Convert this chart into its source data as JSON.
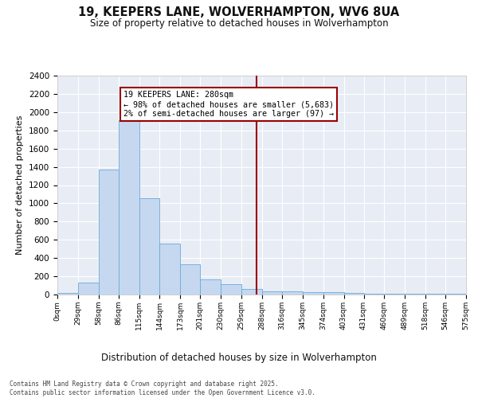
{
  "title_line1": "19, KEEPERS LANE, WOLVERHAMPTON, WV6 8UA",
  "title_line2": "Size of property relative to detached houses in Wolverhampton",
  "xlabel": "Distribution of detached houses by size in Wolverhampton",
  "ylabel": "Number of detached properties",
  "footer": "Contains HM Land Registry data © Crown copyright and database right 2025.\nContains public sector information licensed under the Open Government Licence v3.0.",
  "bar_color": "#c5d8f0",
  "bar_edge_color": "#6baad8",
  "background_color": "#e8edf5",
  "grid_color": "#ffffff",
  "annotation_text": "19 KEEPERS LANE: 280sqm\n← 98% of detached houses are smaller (5,683)\n2% of semi-detached houses are larger (97) →",
  "vline_x": 280,
  "vline_color": "#990000",
  "annotation_box_edge_color": "#990000",
  "bins": [
    0,
    29,
    58,
    86,
    115,
    144,
    173,
    201,
    230,
    259,
    288,
    316,
    345,
    374,
    403,
    431,
    460,
    489,
    518,
    546,
    575
  ],
  "bin_labels": [
    "0sqm",
    "29sqm",
    "58sqm",
    "86sqm",
    "115sqm",
    "144sqm",
    "173sqm",
    "201sqm",
    "230sqm",
    "259sqm",
    "288sqm",
    "316sqm",
    "345sqm",
    "374sqm",
    "403sqm",
    "431sqm",
    "460sqm",
    "489sqm",
    "518sqm",
    "546sqm",
    "575sqm"
  ],
  "counts": [
    15,
    130,
    1370,
    1910,
    1060,
    560,
    335,
    165,
    110,
    65,
    35,
    35,
    25,
    25,
    15,
    5,
    5,
    5,
    5,
    5,
    15
  ],
  "ylim": [
    0,
    2400
  ],
  "yticks": [
    0,
    200,
    400,
    600,
    800,
    1000,
    1200,
    1400,
    1600,
    1800,
    2000,
    2200,
    2400
  ]
}
